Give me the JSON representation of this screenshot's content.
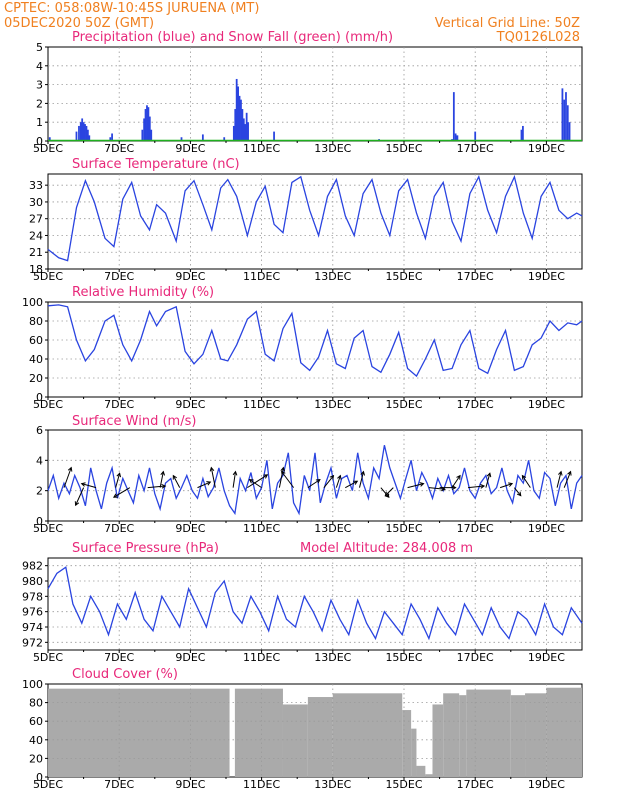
{
  "header": {
    "station": "CPTEC:   058:08W-10:45S  JURUENA (MT)",
    "run": "05DEC2020 50Z (GMT)",
    "grid_note": "Vertical Grid Line: 50Z",
    "code": "TQ0126L028"
  },
  "colors": {
    "line": "#2a44e0",
    "snow": "#1fb01f",
    "cloud": "#aaaaaa",
    "header": "#f08020",
    "title": "#e8287a"
  },
  "chart_data": [
    {
      "type": "bar",
      "title": "Precipitation (blue) and Snow Fall (green) (mm/h)",
      "ylim": [
        0,
        5
      ],
      "yticks": [
        0,
        1,
        2,
        3,
        4,
        5
      ],
      "xtick_labels": [
        "5DEC",
        "7DEC",
        "9DEC",
        "11DEC",
        "13DEC",
        "15DEC",
        "17DEC",
        "19DEC"
      ],
      "days_span": 15,
      "grid": true,
      "bars": [
        {
          "day": 0.05,
          "value": 0.2
        },
        {
          "day": 0.8,
          "value": 0.5
        },
        {
          "day": 0.87,
          "value": 0.8
        },
        {
          "day": 0.92,
          "value": 1.0
        },
        {
          "day": 0.96,
          "value": 1.2
        },
        {
          "day": 1.0,
          "value": 1.0
        },
        {
          "day": 1.04,
          "value": 0.9
        },
        {
          "day": 1.08,
          "value": 0.8
        },
        {
          "day": 1.12,
          "value": 0.6
        },
        {
          "day": 1.16,
          "value": 0.3
        },
        {
          "day": 1.75,
          "value": 0.2
        },
        {
          "day": 1.8,
          "value": 0.4
        },
        {
          "day": 2.65,
          "value": 0.6
        },
        {
          "day": 2.7,
          "value": 1.2
        },
        {
          "day": 2.74,
          "value": 1.7
        },
        {
          "day": 2.78,
          "value": 1.9
        },
        {
          "day": 2.82,
          "value": 1.8
        },
        {
          "day": 2.86,
          "value": 1.3
        },
        {
          "day": 2.9,
          "value": 0.6
        },
        {
          "day": 3.75,
          "value": 0.2
        },
        {
          "day": 4.35,
          "value": 0.35
        },
        {
          "day": 4.95,
          "value": 0.2
        },
        {
          "day": 5.22,
          "value": 0.8
        },
        {
          "day": 5.26,
          "value": 1.7
        },
        {
          "day": 5.3,
          "value": 3.3
        },
        {
          "day": 5.34,
          "value": 2.9
        },
        {
          "day": 5.38,
          "value": 2.4
        },
        {
          "day": 5.42,
          "value": 2.2
        },
        {
          "day": 5.46,
          "value": 1.7
        },
        {
          "day": 5.5,
          "value": 1.2
        },
        {
          "day": 5.54,
          "value": 0.9
        },
        {
          "day": 5.58,
          "value": 1.5
        },
        {
          "day": 5.62,
          "value": 1.0
        },
        {
          "day": 6.35,
          "value": 0.5
        },
        {
          "day": 9.3,
          "value": 0.1
        },
        {
          "day": 11.35,
          "value": 0.1
        },
        {
          "day": 11.4,
          "value": 2.6
        },
        {
          "day": 11.45,
          "value": 0.4
        },
        {
          "day": 11.5,
          "value": 0.3
        },
        {
          "day": 12.0,
          "value": 0.5
        },
        {
          "day": 13.3,
          "value": 0.6
        },
        {
          "day": 13.34,
          "value": 0.8
        },
        {
          "day": 14.45,
          "value": 2.8
        },
        {
          "day": 14.5,
          "value": 2.2
        },
        {
          "day": 14.55,
          "value": 2.6
        },
        {
          "day": 14.6,
          "value": 1.9
        },
        {
          "day": 14.65,
          "value": 1.0
        }
      ],
      "snow": 0
    },
    {
      "type": "line",
      "title": "Surface Temperature (nC)",
      "ylim": [
        18,
        35
      ],
      "yticks": [
        18,
        21,
        24,
        27,
        30,
        33
      ],
      "xtick_labels": [
        "5DEC",
        "7DEC",
        "9DEC",
        "11DEC",
        "13DEC",
        "15DEC",
        "17DEC",
        "19DEC"
      ],
      "days_span": 15,
      "grid": true,
      "x": [
        0,
        0.3,
        0.55,
        0.8,
        1.05,
        1.3,
        1.6,
        1.85,
        2.1,
        2.35,
        2.6,
        2.85,
        3.05,
        3.3,
        3.6,
        3.85,
        4.1,
        4.35,
        4.6,
        4.85,
        5.05,
        5.3,
        5.6,
        5.85,
        6.1,
        6.35,
        6.6,
        6.85,
        7.1,
        7.35,
        7.6,
        7.85,
        8.1,
        8.35,
        8.6,
        8.85,
        9.1,
        9.35,
        9.6,
        9.85,
        10.1,
        10.35,
        10.6,
        10.85,
        11.1,
        11.35,
        11.6,
        11.85,
        12.1,
        12.35,
        12.6,
        12.85,
        13.1,
        13.35,
        13.6,
        13.85,
        14.1,
        14.35,
        14.6,
        14.85,
        15.0
      ],
      "y": [
        21.5,
        20.0,
        19.5,
        29.0,
        33.8,
        30.0,
        23.5,
        22.0,
        30.5,
        33.5,
        27.5,
        25.0,
        29.5,
        28.0,
        23.0,
        32.0,
        33.8,
        29.5,
        25.0,
        32.5,
        34.0,
        31.0,
        24.0,
        30.0,
        32.8,
        26.0,
        24.5,
        33.5,
        34.5,
        28.5,
        24.0,
        31.0,
        34.0,
        27.5,
        24.0,
        31.5,
        34.0,
        28.0,
        24.0,
        32.0,
        34.0,
        28.0,
        23.5,
        31.0,
        33.5,
        26.5,
        23.0,
        31.5,
        34.5,
        28.5,
        24.5,
        31.0,
        34.5,
        28.0,
        23.5,
        31.0,
        33.5,
        28.5,
        27.0,
        28.0,
        27.5
      ]
    },
    {
      "type": "line",
      "title": "Relative Humidity (%)",
      "ylim": [
        0,
        100
      ],
      "yticks": [
        0,
        20,
        40,
        60,
        80,
        100
      ],
      "xtick_labels": [
        "5DEC",
        "7DEC",
        "9DEC",
        "11DEC",
        "13DEC",
        "15DEC",
        "17DEC",
        "19DEC"
      ],
      "days_span": 15,
      "grid": true,
      "x": [
        0,
        0.3,
        0.55,
        0.8,
        1.05,
        1.3,
        1.6,
        1.85,
        2.1,
        2.35,
        2.6,
        2.85,
        3.05,
        3.3,
        3.6,
        3.85,
        4.1,
        4.35,
        4.6,
        4.85,
        5.05,
        5.3,
        5.6,
        5.85,
        6.1,
        6.35,
        6.6,
        6.85,
        7.1,
        7.35,
        7.6,
        7.85,
        8.1,
        8.35,
        8.6,
        8.85,
        9.1,
        9.35,
        9.6,
        9.85,
        10.1,
        10.35,
        10.6,
        10.85,
        11.1,
        11.35,
        11.6,
        11.85,
        12.1,
        12.35,
        12.6,
        12.85,
        13.1,
        13.35,
        13.6,
        13.85,
        14.1,
        14.35,
        14.6,
        14.85,
        15.0
      ],
      "y": [
        96,
        97,
        95,
        60,
        38,
        50,
        80,
        86,
        55,
        38,
        60,
        90,
        75,
        90,
        95,
        48,
        35,
        45,
        70,
        40,
        38,
        55,
        82,
        90,
        45,
        38,
        72,
        88,
        36,
        28,
        42,
        70,
        35,
        30,
        62,
        70,
        32,
        26,
        45,
        68,
        30,
        22,
        40,
        60,
        28,
        30,
        55,
        70,
        30,
        25,
        50,
        70,
        28,
        32,
        55,
        62,
        80,
        70,
        78,
        76,
        80
      ]
    },
    {
      "type": "line",
      "title": "Surface Wind (m/s)",
      "ylim": [
        0,
        6
      ],
      "yticks": [
        0,
        2,
        4,
        6
      ],
      "xtick_labels": [
        "5DEC",
        "7DEC",
        "9DEC",
        "11DEC",
        "13DEC",
        "15DEC",
        "17DEC",
        "19DEC"
      ],
      "days_span": 15,
      "grid": true,
      "x": [
        0,
        0.15,
        0.3,
        0.45,
        0.6,
        0.75,
        0.9,
        1.05,
        1.2,
        1.35,
        1.5,
        1.65,
        1.8,
        1.95,
        2.1,
        2.25,
        2.4,
        2.55,
        2.7,
        2.85,
        3.0,
        3.15,
        3.3,
        3.45,
        3.6,
        3.75,
        3.9,
        4.05,
        4.2,
        4.35,
        4.5,
        4.65,
        4.8,
        4.95,
        5.1,
        5.25,
        5.4,
        5.55,
        5.7,
        5.85,
        6.0,
        6.15,
        6.3,
        6.45,
        6.6,
        6.75,
        6.9,
        7.05,
        7.2,
        7.35,
        7.5,
        7.65,
        7.8,
        7.95,
        8.1,
        8.25,
        8.4,
        8.55,
        8.7,
        8.85,
        9.0,
        9.15,
        9.3,
        9.45,
        9.6,
        9.75,
        9.9,
        10.05,
        10.2,
        10.35,
        10.5,
        10.65,
        10.8,
        10.95,
        11.1,
        11.25,
        11.4,
        11.55,
        11.7,
        11.85,
        12.0,
        12.15,
        12.3,
        12.45,
        12.6,
        12.75,
        12.9,
        13.05,
        13.2,
        13.35,
        13.5,
        13.65,
        13.8,
        13.95,
        14.1,
        14.25,
        14.4,
        14.55,
        14.7,
        14.85,
        15.0
      ],
      "y": [
        2.0,
        3.0,
        1.5,
        2.5,
        1.8,
        3.0,
        2.2,
        1.0,
        3.5,
        2.0,
        0.8,
        2.5,
        3.5,
        1.5,
        2.8,
        2.0,
        1.2,
        3.0,
        2.0,
        3.5,
        1.8,
        0.8,
        2.5,
        2.8,
        1.5,
        2.2,
        3.0,
        2.0,
        1.5,
        2.8,
        1.6,
        2.2,
        3.5,
        2.0,
        1.0,
        0.5,
        2.8,
        2.0,
        3.2,
        1.5,
        2.2,
        4.0,
        0.8,
        2.5,
        3.0,
        4.5,
        1.2,
        0.5,
        3.0,
        2.0,
        4.5,
        1.2,
        2.5,
        3.5,
        1.5,
        2.8,
        3.0,
        2.0,
        4.5,
        2.5,
        1.5,
        3.5,
        2.8,
        5.0,
        3.5,
        2.5,
        1.5,
        2.8,
        4.0,
        2.0,
        3.2,
        2.5,
        1.5,
        2.8,
        2.0,
        3.0,
        1.8,
        2.2,
        3.5,
        2.0,
        1.5,
        2.5,
        3.0,
        1.8,
        2.2,
        3.5,
        2.0,
        1.2,
        3.0,
        2.5,
        4.0,
        2.0,
        1.5,
        3.2,
        2.8,
        1.0,
        2.5,
        3.0,
        0.8,
        2.5,
        3.0
      ],
      "barbs": [
        {
          "day": 0.45,
          "u": 0.9,
          "v": 2.5
        },
        {
          "day": 1.0,
          "u": -1.0,
          "v": -2.2
        },
        {
          "day": 1.35,
          "u": -1.8,
          "v": 0.5
        },
        {
          "day": 1.9,
          "u": 0.5,
          "v": 1.8
        },
        {
          "day": 2.3,
          "u": -2.0,
          "v": -1.2
        },
        {
          "day": 2.8,
          "u": 2.2,
          "v": 0.2
        },
        {
          "day": 3.15,
          "u": 0.4,
          "v": 2.0
        },
        {
          "day": 3.7,
          "u": -0.8,
          "v": 1.5
        },
        {
          "day": 4.2,
          "u": 1.6,
          "v": 0.7
        },
        {
          "day": 4.7,
          "u": -0.5,
          "v": 2.5
        },
        {
          "day": 5.2,
          "u": 0.3,
          "v": 2.0
        },
        {
          "day": 5.6,
          "u": 2.5,
          "v": 1.6
        },
        {
          "day": 6.0,
          "u": -1.5,
          "v": 1.0
        },
        {
          "day": 6.5,
          "u": 0.5,
          "v": 2.5
        },
        {
          "day": 6.9,
          "u": -1.5,
          "v": 2.0
        },
        {
          "day": 7.3,
          "u": 1.5,
          "v": 1.0
        },
        {
          "day": 7.75,
          "u": 1.2,
          "v": 1.5
        },
        {
          "day": 8.1,
          "u": 0.5,
          "v": 1.5
        },
        {
          "day": 8.35,
          "u": 1.5,
          "v": 0.8
        },
        {
          "day": 8.75,
          "u": 0.5,
          "v": 2.0
        },
        {
          "day": 9.35,
          "u": 1.0,
          "v": -1.2
        },
        {
          "day": 9.7,
          "u": -1.0,
          "v": -1.0
        },
        {
          "day": 10.1,
          "u": 2.0,
          "v": 0.5
        },
        {
          "day": 10.7,
          "u": 2.0,
          "v": -0.2
        },
        {
          "day": 11.0,
          "u": 2.0,
          "v": 0.0
        },
        {
          "day": 11.35,
          "u": 1.0,
          "v": 1.5
        },
        {
          "day": 11.8,
          "u": 2.0,
          "v": 0.2
        },
        {
          "day": 12.3,
          "u": 0.5,
          "v": 1.8
        },
        {
          "day": 12.7,
          "u": 1.5,
          "v": 0.5
        },
        {
          "day": 13.1,
          "u": 0.8,
          "v": -1.0
        },
        {
          "day": 13.55,
          "u": -1.0,
          "v": 1.5
        },
        {
          "day": 14.3,
          "u": 0.5,
          "v": 2.0
        },
        {
          "day": 14.5,
          "u": 0.8,
          "v": 2.0
        }
      ]
    },
    {
      "type": "line",
      "title": "Surface Pressure (hPa)",
      "note": "Model Altitude: 284.008 m",
      "ylim": [
        971,
        983
      ],
      "yticks": [
        972,
        974,
        976,
        978,
        980,
        982
      ],
      "xtick_labels": [
        "5DEC",
        "7DEC",
        "9DEC",
        "11DEC",
        "13DEC",
        "15DEC",
        "17DEC",
        "19DEC"
      ],
      "days_span": 15,
      "grid": true,
      "x": [
        0,
        0.25,
        0.5,
        0.7,
        0.95,
        1.2,
        1.45,
        1.7,
        1.95,
        2.2,
        2.45,
        2.7,
        2.95,
        3.2,
        3.45,
        3.7,
        3.95,
        4.2,
        4.45,
        4.7,
        4.95,
        5.2,
        5.45,
        5.7,
        5.95,
        6.2,
        6.45,
        6.7,
        6.95,
        7.2,
        7.45,
        7.7,
        7.95,
        8.2,
        8.45,
        8.7,
        8.95,
        9.2,
        9.45,
        9.7,
        9.95,
        10.2,
        10.45,
        10.7,
        10.95,
        11.2,
        11.45,
        11.7,
        11.95,
        12.2,
        12.45,
        12.7,
        12.95,
        13.2,
        13.45,
        13.7,
        13.95,
        14.2,
        14.45,
        14.7,
        15.0
      ],
      "y": [
        979,
        981,
        981.8,
        977,
        974.5,
        978,
        976,
        973,
        977,
        975,
        978.5,
        975,
        973.5,
        978,
        976,
        974,
        979,
        976.5,
        974,
        978.5,
        980,
        976,
        974.5,
        978,
        976,
        973.5,
        978,
        975,
        974,
        978,
        976,
        973.5,
        977.5,
        975,
        973,
        977.5,
        974.5,
        972.5,
        976,
        974.5,
        973,
        977,
        975,
        972.5,
        976.5,
        974.5,
        973,
        977,
        975,
        973,
        976.5,
        974,
        972.5,
        976,
        975,
        973,
        977,
        974,
        973,
        976.5,
        974.5
      ]
    },
    {
      "type": "bar",
      "title": "Cloud Cover (%)",
      "ylim": [
        0,
        100
      ],
      "yticks": [
        0,
        20,
        40,
        60,
        80,
        100
      ],
      "xtick_labels": [
        "5DEC",
        "7DEC",
        "9DEC",
        "11DEC",
        "13DEC",
        "15DEC",
        "17DEC",
        "19DEC"
      ],
      "days_span": 15,
      "grid": true,
      "segments": [
        {
          "from": 0.0,
          "to": 5.1,
          "value": 95
        },
        {
          "from": 5.1,
          "to": 5.25,
          "value": 0
        },
        {
          "from": 5.25,
          "to": 6.6,
          "value": 95
        },
        {
          "from": 6.6,
          "to": 7.3,
          "value": 78
        },
        {
          "from": 7.3,
          "to": 8.0,
          "value": 86
        },
        {
          "from": 8.0,
          "to": 9.95,
          "value": 90
        },
        {
          "from": 9.95,
          "to": 10.2,
          "value": 72
        },
        {
          "from": 10.2,
          "to": 10.35,
          "value": 52
        },
        {
          "from": 10.35,
          "to": 10.6,
          "value": 12
        },
        {
          "from": 10.6,
          "to": 10.8,
          "value": 3
        },
        {
          "from": 10.8,
          "to": 11.1,
          "value": 78
        },
        {
          "from": 11.1,
          "to": 11.55,
          "value": 90
        },
        {
          "from": 11.55,
          "to": 11.75,
          "value": 88
        },
        {
          "from": 11.75,
          "to": 13.0,
          "value": 94
        },
        {
          "from": 13.0,
          "to": 13.4,
          "value": 88
        },
        {
          "from": 13.4,
          "to": 14.0,
          "value": 90
        },
        {
          "from": 14.0,
          "to": 15.0,
          "value": 96
        }
      ]
    }
  ]
}
